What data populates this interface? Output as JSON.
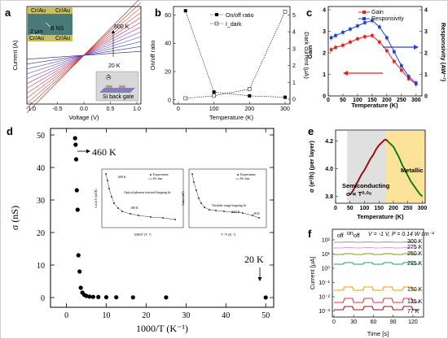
{
  "labels": {
    "a": "a",
    "b": "b",
    "c": "c",
    "d": "d",
    "e": "e",
    "f": "f"
  },
  "chart_data": [
    {
      "panel": "a",
      "type": "line",
      "xlabel": "Voltage (V)",
      "ylabel": "Current (A)",
      "xticks": [
        "-1.0",
        "-0.5",
        "0.0",
        "0.5",
        "1.0"
      ],
      "inset_labels": {
        "top_left": "Cr/Au",
        "top_right": "Cr/Au",
        "bottom_left": "Cr/Au",
        "bottom_right": "Cr/Au",
        "scale": "2 μm",
        "ns": "B NS",
        "t_high": "600 K",
        "t_low": "20 K",
        "schematic": "Si back gate"
      },
      "series_count": 12
    },
    {
      "panel": "b",
      "type": "scatter",
      "xlabel": "Temperature (K)",
      "ylabel": "On/off ratio",
      "y2label": "Dark current (μA)",
      "xlim": [
        0,
        300
      ],
      "ylim": [
        -3,
        66
      ],
      "y2lim": [
        0,
        5.5
      ],
      "xticks": [
        "0",
        "100",
        "200",
        "300"
      ],
      "yticks": [
        "0",
        "20",
        "40",
        "60"
      ],
      "y2ticks": [
        "0",
        "1",
        "2",
        "3",
        "4",
        "5"
      ],
      "legend": [
        "On/off ratio",
        "I_dark"
      ],
      "x": [
        20,
        100,
        200,
        300
      ],
      "series": [
        {
          "name": "On/off ratio",
          "values": [
            63,
            5.5,
            2.8,
            1.8
          ]
        },
        {
          "name": "I_dark",
          "axis": "right",
          "values": [
            0.05,
            0.2,
            0.6,
            5.2
          ]
        }
      ]
    },
    {
      "panel": "c",
      "type": "line",
      "xlabel": "Temperature (K)",
      "ylabel": "Gain",
      "y2label": "Responsivity (AW⁻¹)",
      "xlim": [
        0,
        320
      ],
      "ylim": [
        0,
        4
      ],
      "y2lim": [
        0,
        4
      ],
      "xticks": [
        "0",
        "50",
        "100",
        "150",
        "200",
        "250",
        "300"
      ],
      "yticks": [
        "0",
        "1",
        "2",
        "3",
        "4"
      ],
      "y2ticks": [
        "0",
        "1",
        "2",
        "3",
        "4"
      ],
      "legend": [
        "Gain",
        "Responsivity"
      ],
      "x": [
        10,
        25,
        50,
        75,
        100,
        125,
        150,
        175,
        200,
        225,
        250,
        275,
        300
      ],
      "series": [
        {
          "name": "Gain",
          "color": "#e02020",
          "values": [
            2.15,
            2.25,
            2.35,
            2.5,
            2.65,
            2.75,
            2.8,
            2.5,
            2.1,
            1.6,
            1.2,
            0.8,
            0.55
          ]
        },
        {
          "name": "Responsivity",
          "color": "#2040d0",
          "axis": "right",
          "values": [
            2.7,
            2.8,
            2.95,
            3.1,
            3.25,
            3.4,
            3.5,
            3.2,
            2.7,
            2.05,
            1.4,
            0.9,
            0.6
          ]
        }
      ]
    },
    {
      "panel": "d",
      "type": "scatter",
      "xlabel": "1000/T (K⁻¹)",
      "ylabel": "σ (nS)",
      "xlim": [
        -4,
        52
      ],
      "ylim": [
        -3,
        52
      ],
      "xticks": [
        "0",
        "10",
        "20",
        "30",
        "40",
        "50"
      ],
      "yticks": [
        "0",
        "10",
        "20",
        "30",
        "40",
        "50"
      ],
      "annotations": [
        "460 K",
        "20 K"
      ],
      "x": [
        2.17,
        2.3,
        2.45,
        2.6,
        2.8,
        3.0,
        3.3,
        3.6,
        4.0,
        4.5,
        5.0,
        5.8,
        6.7,
        8.0,
        10,
        12.5,
        16.7,
        25,
        50
      ],
      "y": [
        49,
        47,
        42.5,
        33,
        27,
        13,
        8,
        3,
        1.5,
        0.8,
        0.5,
        0.3,
        0.2,
        0.15,
        0.1,
        0.08,
        0.05,
        0.04,
        0.02
      ],
      "insets": [
        {
          "legend": [
            "Experiment",
            "Fit line"
          ],
          "xlabel": "1000/T (T⁻¹)",
          "ylabel": "Ln (σT) (nSK)",
          "labels": [
            "600 K",
            "Optical-phonon-assisted hopping fit",
            "180 K"
          ]
        },
        {
          "legend": [
            "Experiment",
            "Fit line"
          ],
          "xlabel": "T⁻¹/⁴ (K⁻¹)",
          "ylabel": "Ln(σ) (nS)",
          "labels": [
            "Variable-range hopping fit",
            "160 K",
            "20 K"
          ]
        }
      ]
    },
    {
      "panel": "e",
      "type": "line",
      "xlabel": "Temperature (K)",
      "ylabel": "σ (e²/h) (per layer)",
      "xlim": [
        0,
        310
      ],
      "ylim": [
        3.75,
        4.28
      ],
      "xticks": [
        "0",
        "50",
        "100",
        "150",
        "200",
        "250",
        "300"
      ],
      "yticks": [
        "3.8",
        "4.0",
        "4.2"
      ],
      "regions": [
        {
          "label": "Semiconducting",
          "sublabel": "σ ∝ T⁰·⁰⁸"
        },
        {
          "label": "Metallic"
        }
      ],
      "x": [
        50,
        60,
        70,
        80,
        90,
        100,
        110,
        120,
        130,
        140,
        150,
        160,
        170,
        175,
        180,
        190,
        200,
        210,
        220,
        230,
        240,
        250,
        260,
        270,
        280,
        290,
        300
      ],
      "y": [
        3.81,
        3.84,
        3.88,
        3.92,
        3.96,
        3.99,
        4.03,
        4.07,
        4.1,
        4.14,
        4.17,
        4.19,
        4.21,
        4.21,
        4.2,
        4.18,
        4.16,
        4.12,
        4.08,
        4.03,
        3.99,
        3.95,
        3.91,
        3.88,
        3.85,
        3.82,
        3.8
      ]
    },
    {
      "panel": "f",
      "type": "line",
      "xlabel": "Time [s]",
      "ylabel": "Current [μA]",
      "title": "V = -1 V, P = 0.14 W cm⁻²",
      "onoff": [
        "off",
        "on",
        "off"
      ],
      "xticks": [
        "0",
        "30",
        "60",
        "90",
        "120"
      ],
      "yticks": [
        "10²",
        "10¹",
        "10⁰",
        "10⁻¹",
        "10⁻²",
        "10⁻³"
      ],
      "series": [
        {
          "name": "300 K",
          "color": "#9a9a9a"
        },
        {
          "name": "275 K",
          "color": "#e0a0c8"
        },
        {
          "name": "250 K",
          "color": "#909020"
        },
        {
          "name": "225 K",
          "color": "#20a080"
        },
        {
          "name": "150 K",
          "color": "#f0a000"
        },
        {
          "name": "125 K",
          "color": "#e03050"
        },
        {
          "name": "77 K",
          "color": "#a01010"
        }
      ]
    }
  ]
}
